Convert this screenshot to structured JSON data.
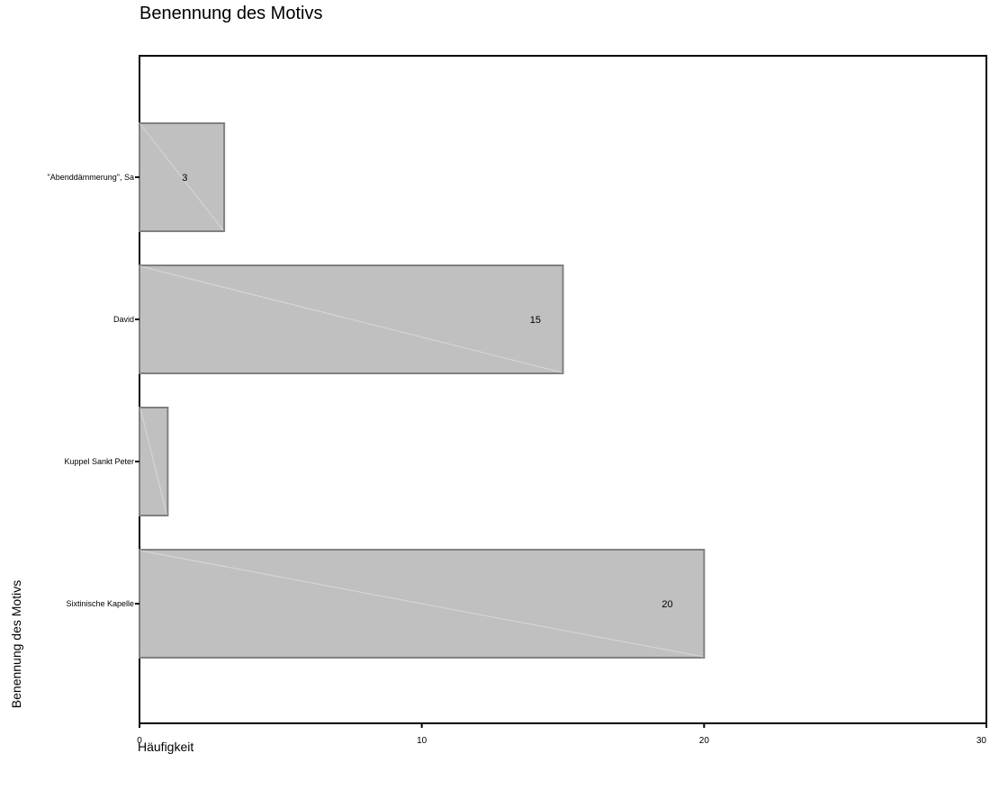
{
  "chart_data": {
    "type": "bar",
    "orientation": "horizontal",
    "title": "Benennung des Motivs",
    "xlabel": "Häufigkeit",
    "ylabel": "Benennung des Motivs",
    "categories": [
      "\"Abenddämmerung\", Sa",
      "David",
      "Kuppel Sankt Peter",
      "Sixtinische Kapelle"
    ],
    "values": [
      3,
      15,
      1,
      20
    ],
    "data_labels": [
      "3",
      "15",
      "",
      "20"
    ],
    "xlim": [
      0,
      30
    ],
    "xticks": [
      0,
      10,
      20,
      30
    ],
    "grid": false,
    "legend": "none",
    "colors": {
      "bar_fill": "#c0c0c0",
      "bar_stroke": "#808080",
      "frame": "#000000"
    }
  }
}
